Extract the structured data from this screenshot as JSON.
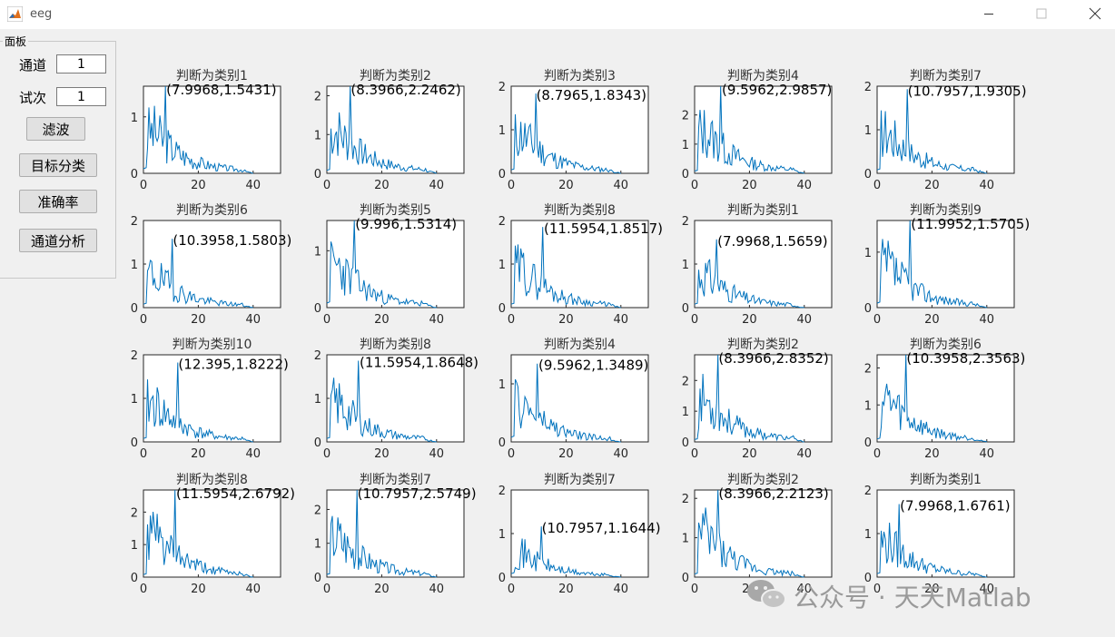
{
  "window": {
    "title": "eeg"
  },
  "panel": {
    "title": "面板",
    "channel_label": "通道",
    "channel_value": "1",
    "trial_label": "试次",
    "trial_value": "1",
    "filter_button": "滤波",
    "classify_button": "目标分类",
    "accuracy_button": "准确率",
    "channel_analysis_button": "通道分析"
  },
  "chart_data": [
    {
      "type": "line",
      "title": "判断为类别1",
      "peak_label": "(7.9968,1.5431)",
      "peak": [
        7.9968,
        1.5431
      ],
      "ylim": [
        0,
        1.5431
      ],
      "yticks": [
        0,
        1
      ],
      "xlim": [
        0,
        50
      ],
      "xticks": [
        0,
        20,
        40
      ],
      "seed": 3
    },
    {
      "type": "line",
      "title": "判断为类别2",
      "peak_label": "(8.3966,2.2462)",
      "peak": [
        8.3966,
        2.2462
      ],
      "ylim": [
        0,
        2.2462
      ],
      "yticks": [
        0,
        1,
        2
      ],
      "xlim": [
        0,
        50
      ],
      "xticks": [
        0,
        20,
        40
      ],
      "seed": 7
    },
    {
      "type": "line",
      "title": "判断为类别3",
      "peak_label": "(8.7965,1.8343)",
      "peak": [
        8.7965,
        1.8343
      ],
      "ylim": [
        0,
        2
      ],
      "yticks": [
        0,
        1,
        2
      ],
      "xlim": [
        0,
        50
      ],
      "xticks": [
        0,
        20,
        40
      ],
      "seed": 11
    },
    {
      "type": "line",
      "title": "判断为类别4",
      "peak_label": "(9.5962,2.9857)",
      "peak": [
        9.5962,
        2.9857
      ],
      "ylim": [
        0,
        2.9857
      ],
      "yticks": [
        0,
        1,
        2
      ],
      "xlim": [
        0,
        50
      ],
      "xticks": [
        0,
        20,
        40
      ],
      "seed": 13
    },
    {
      "type": "line",
      "title": "判断为类别7",
      "peak_label": "(10.7957,1.9305)",
      "peak": [
        10.7957,
        1.9305
      ],
      "ylim": [
        0,
        2
      ],
      "yticks": [
        0,
        1,
        2
      ],
      "xlim": [
        0,
        50
      ],
      "xticks": [
        0,
        20,
        40
      ],
      "seed": 17
    },
    {
      "type": "line",
      "title": "判断为类别6",
      "peak_label": "(10.3958,1.5803)",
      "peak": [
        10.3958,
        1.5803
      ],
      "ylim": [
        0,
        2
      ],
      "yticks": [
        0,
        1,
        2
      ],
      "xlim": [
        0,
        50
      ],
      "xticks": [
        0,
        20,
        40
      ],
      "seed": 19
    },
    {
      "type": "line",
      "title": "判断为类别5",
      "peak_label": "(9.996,1.5314)",
      "peak": [
        9.996,
        1.5314
      ],
      "ylim": [
        0,
        1.5314
      ],
      "yticks": [
        0,
        1
      ],
      "xlim": [
        0,
        50
      ],
      "xticks": [
        0,
        20,
        40
      ],
      "seed": 23
    },
    {
      "type": "line",
      "title": "判断为类别8",
      "peak_label": "(11.5954,1.8517)",
      "peak": [
        11.5954,
        1.8517
      ],
      "ylim": [
        0,
        2
      ],
      "yticks": [
        0,
        1,
        2
      ],
      "xlim": [
        0,
        50
      ],
      "xticks": [
        0,
        20,
        40
      ],
      "seed": 29
    },
    {
      "type": "line",
      "title": "判断为类别1",
      "peak_label": "(7.9968,1.5659)",
      "peak": [
        7.9968,
        1.5659
      ],
      "ylim": [
        0,
        2
      ],
      "yticks": [
        0,
        1,
        2
      ],
      "xlim": [
        0,
        50
      ],
      "xticks": [
        0,
        20,
        40
      ],
      "seed": 31
    },
    {
      "type": "line",
      "title": "判断为类别9",
      "peak_label": "(11.9952,1.5705)",
      "peak": [
        11.9952,
        1.5705
      ],
      "ylim": [
        0,
        1.5705
      ],
      "yticks": [
        0,
        1
      ],
      "xlim": [
        0,
        50
      ],
      "xticks": [
        0,
        20,
        40
      ],
      "seed": 37
    },
    {
      "type": "line",
      "title": "判断为类别10",
      "peak_label": "(12.395,1.8222)",
      "peak": [
        12.395,
        1.8222
      ],
      "ylim": [
        0,
        2
      ],
      "yticks": [
        0,
        1,
        2
      ],
      "xlim": [
        0,
        50
      ],
      "xticks": [
        0,
        20,
        40
      ],
      "seed": 41
    },
    {
      "type": "line",
      "title": "判断为类别8",
      "peak_label": "(11.5954,1.8648)",
      "peak": [
        11.5954,
        1.8648
      ],
      "ylim": [
        0,
        2
      ],
      "yticks": [
        0,
        1,
        2
      ],
      "xlim": [
        0,
        50
      ],
      "xticks": [
        0,
        20,
        40
      ],
      "seed": 43
    },
    {
      "type": "line",
      "title": "判断为类别4",
      "peak_label": "(9.5962,1.3489)",
      "peak": [
        9.5962,
        1.3489
      ],
      "ylim": [
        0,
        1.5
      ],
      "yticks": [
        0,
        1
      ],
      "xlim": [
        0,
        50
      ],
      "xticks": [
        0,
        20,
        40
      ],
      "seed": 47
    },
    {
      "type": "line",
      "title": "判断为类别2",
      "peak_label": "(8.3966,2.8352)",
      "peak": [
        8.3966,
        2.8352
      ],
      "ylim": [
        0,
        2.8352
      ],
      "yticks": [
        0,
        1,
        2
      ],
      "xlim": [
        0,
        50
      ],
      "xticks": [
        0,
        20,
        40
      ],
      "seed": 53
    },
    {
      "type": "line",
      "title": "判断为类别6",
      "peak_label": "(10.3958,2.3563)",
      "peak": [
        10.3958,
        2.3563
      ],
      "ylim": [
        0,
        2.3563
      ],
      "yticks": [
        0,
        1,
        2
      ],
      "xlim": [
        0,
        50
      ],
      "xticks": [
        0,
        20,
        40
      ],
      "seed": 59
    },
    {
      "type": "line",
      "title": "判断为类别8",
      "peak_label": "(11.5954,2.6792)",
      "peak": [
        11.5954,
        2.6792
      ],
      "ylim": [
        0,
        2.6792
      ],
      "yticks": [
        0,
        1,
        2
      ],
      "xlim": [
        0,
        50
      ],
      "xticks": [
        0,
        20,
        40
      ],
      "seed": 61
    },
    {
      "type": "line",
      "title": "判断为类别7",
      "peak_label": "(10.7957,2.5749)",
      "peak": [
        10.7957,
        2.5749
      ],
      "ylim": [
        0,
        2.5749
      ],
      "yticks": [
        0,
        1,
        2
      ],
      "xlim": [
        0,
        50
      ],
      "xticks": [
        0,
        20,
        40
      ],
      "seed": 67
    },
    {
      "type": "line",
      "title": "判断为类别7",
      "peak_label": "(10.7957,1.1644)",
      "peak": [
        10.7957,
        1.1644
      ],
      "ylim": [
        0,
        2
      ],
      "yticks": [
        0,
        1,
        2
      ],
      "xlim": [
        0,
        50
      ],
      "xticks": [
        0,
        20,
        40
      ],
      "seed": 71
    },
    {
      "type": "line",
      "title": "判断为类别2",
      "peak_label": "(8.3966,2.2123)",
      "peak": [
        8.3966,
        2.2123
      ],
      "ylim": [
        0,
        2.2123
      ],
      "yticks": [
        0,
        1,
        2
      ],
      "xlim": [
        0,
        50
      ],
      "xticks": [
        0,
        20,
        40
      ],
      "seed": 73
    },
    {
      "type": "line",
      "title": "判断为类别1",
      "peak_label": "(7.9968,1.6761)",
      "peak": [
        7.9968,
        1.6761
      ],
      "ylim": [
        0,
        2
      ],
      "yticks": [
        0,
        1,
        2
      ],
      "xlim": [
        0,
        50
      ],
      "xticks": [
        0,
        20,
        40
      ],
      "seed": 79
    }
  ],
  "watermark": {
    "text": "公众号 · 天天Matlab"
  },
  "colors": {
    "line": "#0072bd",
    "axis": "#262626",
    "window_bg": "#f0f0f0"
  },
  "icons": {
    "app": "matlab-icon",
    "minimize": "minimize-icon",
    "maximize": "maximize-icon",
    "close": "close-icon",
    "wechat": "wechat-icon"
  }
}
